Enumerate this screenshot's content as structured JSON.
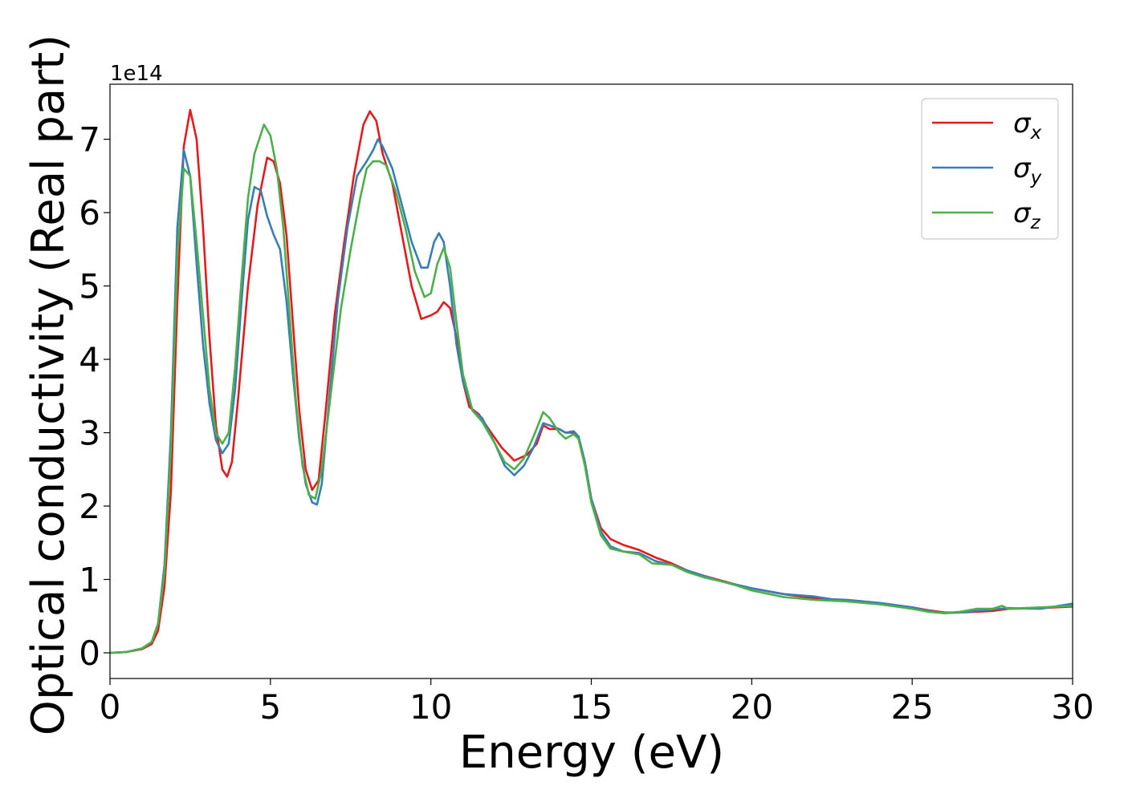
{
  "chart_data": {
    "type": "line",
    "xlabel": "Energy (eV)",
    "ylabel": "Optical conductivity (Real part)",
    "y_offset_text": "1e14",
    "y_scale_multiplier": 100000000000000.0,
    "xlim": [
      0,
      30
    ],
    "ylim": [
      -0.35,
      7.75
    ],
    "x_ticks": [
      0,
      5,
      10,
      15,
      20,
      25,
      30
    ],
    "y_ticks": [
      0,
      1,
      2,
      3,
      4,
      5,
      6,
      7
    ],
    "grid": false,
    "legend_position": "top-right",
    "series": [
      {
        "name": "σ",
        "subscript": "x",
        "color": "#e41a1c",
        "points": [
          [
            0,
            0
          ],
          [
            0.5,
            0.01
          ],
          [
            1.0,
            0.05
          ],
          [
            1.3,
            0.12
          ],
          [
            1.5,
            0.3
          ],
          [
            1.7,
            0.9
          ],
          [
            1.9,
            2.2
          ],
          [
            2.1,
            4.8
          ],
          [
            2.3,
            6.9
          ],
          [
            2.5,
            7.4
          ],
          [
            2.7,
            7.0
          ],
          [
            2.9,
            5.8
          ],
          [
            3.1,
            4.3
          ],
          [
            3.3,
            3.1
          ],
          [
            3.5,
            2.5
          ],
          [
            3.65,
            2.4
          ],
          [
            3.8,
            2.6
          ],
          [
            4.0,
            3.5
          ],
          [
            4.3,
            5.0
          ],
          [
            4.6,
            6.1
          ],
          [
            4.9,
            6.75
          ],
          [
            5.1,
            6.7
          ],
          [
            5.3,
            6.4
          ],
          [
            5.5,
            5.7
          ],
          [
            5.7,
            4.5
          ],
          [
            5.9,
            3.3
          ],
          [
            6.1,
            2.5
          ],
          [
            6.3,
            2.22
          ],
          [
            6.5,
            2.35
          ],
          [
            6.7,
            3.2
          ],
          [
            7.0,
            4.6
          ],
          [
            7.3,
            5.6
          ],
          [
            7.6,
            6.5
          ],
          [
            7.9,
            7.2
          ],
          [
            8.1,
            7.38
          ],
          [
            8.3,
            7.25
          ],
          [
            8.5,
            6.8
          ],
          [
            8.8,
            6.4
          ],
          [
            9.1,
            5.7
          ],
          [
            9.4,
            5.0
          ],
          [
            9.7,
            4.55
          ],
          [
            10.0,
            4.6
          ],
          [
            10.2,
            4.65
          ],
          [
            10.4,
            4.78
          ],
          [
            10.6,
            4.7
          ],
          [
            10.8,
            4.3
          ],
          [
            11.0,
            3.7
          ],
          [
            11.2,
            3.35
          ],
          [
            11.5,
            3.25
          ],
          [
            11.8,
            3.05
          ],
          [
            12.2,
            2.8
          ],
          [
            12.6,
            2.62
          ],
          [
            13.0,
            2.7
          ],
          [
            13.3,
            2.85
          ],
          [
            13.5,
            3.1
          ],
          [
            13.7,
            3.05
          ],
          [
            14.0,
            3.05
          ],
          [
            14.2,
            3.0
          ],
          [
            14.45,
            3.0
          ],
          [
            14.6,
            2.95
          ],
          [
            14.8,
            2.6
          ],
          [
            15.0,
            2.1
          ],
          [
            15.3,
            1.7
          ],
          [
            15.6,
            1.55
          ],
          [
            16.0,
            1.47
          ],
          [
            16.5,
            1.4
          ],
          [
            17.0,
            1.3
          ],
          [
            17.5,
            1.22
          ],
          [
            18.0,
            1.12
          ],
          [
            18.5,
            1.05
          ],
          [
            19.0,
            0.99
          ],
          [
            19.5,
            0.93
          ],
          [
            20.0,
            0.88
          ],
          [
            21.0,
            0.8
          ],
          [
            22.0,
            0.74
          ],
          [
            23.0,
            0.7
          ],
          [
            24.0,
            0.67
          ],
          [
            25.0,
            0.62
          ],
          [
            25.5,
            0.58
          ],
          [
            26.0,
            0.55
          ],
          [
            26.5,
            0.55
          ],
          [
            27.0,
            0.56
          ],
          [
            27.5,
            0.57
          ],
          [
            28.0,
            0.6
          ],
          [
            29.0,
            0.61
          ],
          [
            30.0,
            0.63
          ]
        ]
      },
      {
        "name": "σ",
        "subscript": "y",
        "color": "#377eb8",
        "points": [
          [
            0,
            0
          ],
          [
            0.5,
            0.01
          ],
          [
            1.0,
            0.06
          ],
          [
            1.3,
            0.15
          ],
          [
            1.5,
            0.4
          ],
          [
            1.7,
            1.2
          ],
          [
            1.9,
            3.0
          ],
          [
            2.1,
            5.8
          ],
          [
            2.3,
            6.85
          ],
          [
            2.5,
            6.5
          ],
          [
            2.7,
            5.3
          ],
          [
            2.9,
            4.2
          ],
          [
            3.1,
            3.4
          ],
          [
            3.3,
            2.9
          ],
          [
            3.5,
            2.72
          ],
          [
            3.7,
            2.85
          ],
          [
            3.9,
            3.6
          ],
          [
            4.1,
            4.8
          ],
          [
            4.3,
            5.9
          ],
          [
            4.5,
            6.35
          ],
          [
            4.7,
            6.3
          ],
          [
            4.9,
            5.95
          ],
          [
            5.1,
            5.7
          ],
          [
            5.3,
            5.5
          ],
          [
            5.5,
            4.8
          ],
          [
            5.7,
            3.8
          ],
          [
            5.9,
            2.9
          ],
          [
            6.1,
            2.3
          ],
          [
            6.3,
            2.05
          ],
          [
            6.45,
            2.02
          ],
          [
            6.6,
            2.3
          ],
          [
            6.8,
            3.3
          ],
          [
            7.1,
            4.8
          ],
          [
            7.4,
            5.8
          ],
          [
            7.7,
            6.5
          ],
          [
            8.0,
            6.7
          ],
          [
            8.2,
            6.85
          ],
          [
            8.35,
            7.0
          ],
          [
            8.5,
            6.9
          ],
          [
            8.8,
            6.6
          ],
          [
            9.1,
            6.1
          ],
          [
            9.4,
            5.6
          ],
          [
            9.7,
            5.25
          ],
          [
            9.9,
            5.25
          ],
          [
            10.1,
            5.6
          ],
          [
            10.25,
            5.72
          ],
          [
            10.4,
            5.6
          ],
          [
            10.6,
            5.0
          ],
          [
            10.8,
            4.2
          ],
          [
            11.0,
            3.7
          ],
          [
            11.3,
            3.3
          ],
          [
            11.6,
            3.2
          ],
          [
            12.0,
            2.85
          ],
          [
            12.3,
            2.55
          ],
          [
            12.6,
            2.42
          ],
          [
            12.9,
            2.55
          ],
          [
            13.2,
            2.8
          ],
          [
            13.5,
            3.13
          ],
          [
            13.7,
            3.1
          ],
          [
            14.0,
            3.05
          ],
          [
            14.2,
            3.0
          ],
          [
            14.45,
            3.02
          ],
          [
            14.6,
            2.95
          ],
          [
            14.8,
            2.6
          ],
          [
            15.0,
            2.1
          ],
          [
            15.3,
            1.65
          ],
          [
            15.6,
            1.45
          ],
          [
            16.0,
            1.38
          ],
          [
            16.5,
            1.36
          ],
          [
            17.0,
            1.25
          ],
          [
            17.5,
            1.2
          ],
          [
            18.0,
            1.12
          ],
          [
            18.5,
            1.05
          ],
          [
            19.0,
            0.98
          ],
          [
            19.5,
            0.93
          ],
          [
            20.0,
            0.88
          ],
          [
            21.0,
            0.8
          ],
          [
            21.9,
            0.77
          ],
          [
            22.5,
            0.73
          ],
          [
            23.0,
            0.72
          ],
          [
            24.0,
            0.68
          ],
          [
            25.0,
            0.62
          ],
          [
            25.5,
            0.57
          ],
          [
            26.0,
            0.54
          ],
          [
            26.5,
            0.55
          ],
          [
            27.0,
            0.57
          ],
          [
            27.5,
            0.59
          ],
          [
            28.0,
            0.61
          ],
          [
            29.0,
            0.6
          ],
          [
            30.0,
            0.67
          ]
        ]
      },
      {
        "name": "σ",
        "subscript": "z",
        "color": "#4daf4a",
        "points": [
          [
            0,
            0
          ],
          [
            0.5,
            0.01
          ],
          [
            1.0,
            0.06
          ],
          [
            1.3,
            0.15
          ],
          [
            1.5,
            0.4
          ],
          [
            1.7,
            1.1
          ],
          [
            1.9,
            2.8
          ],
          [
            2.1,
            5.4
          ],
          [
            2.3,
            6.6
          ],
          [
            2.5,
            6.5
          ],
          [
            2.7,
            5.6
          ],
          [
            2.9,
            4.6
          ],
          [
            3.1,
            3.6
          ],
          [
            3.3,
            3.0
          ],
          [
            3.5,
            2.85
          ],
          [
            3.7,
            3.0
          ],
          [
            3.9,
            3.9
          ],
          [
            4.1,
            5.1
          ],
          [
            4.3,
            6.2
          ],
          [
            4.5,
            6.8
          ],
          [
            4.8,
            7.2
          ],
          [
            5.0,
            7.05
          ],
          [
            5.2,
            6.6
          ],
          [
            5.4,
            5.8
          ],
          [
            5.6,
            4.6
          ],
          [
            5.8,
            3.4
          ],
          [
            6.0,
            2.55
          ],
          [
            6.2,
            2.15
          ],
          [
            6.4,
            2.1
          ],
          [
            6.6,
            2.5
          ],
          [
            6.9,
            3.6
          ],
          [
            7.2,
            4.7
          ],
          [
            7.5,
            5.5
          ],
          [
            7.8,
            6.2
          ],
          [
            8.0,
            6.6
          ],
          [
            8.2,
            6.7
          ],
          [
            8.4,
            6.7
          ],
          [
            8.6,
            6.65
          ],
          [
            8.9,
            6.3
          ],
          [
            9.2,
            5.8
          ],
          [
            9.5,
            5.2
          ],
          [
            9.8,
            4.85
          ],
          [
            10.0,
            4.9
          ],
          [
            10.2,
            5.3
          ],
          [
            10.4,
            5.52
          ],
          [
            10.6,
            5.25
          ],
          [
            10.8,
            4.5
          ],
          [
            11.0,
            3.8
          ],
          [
            11.3,
            3.3
          ],
          [
            11.6,
            3.15
          ],
          [
            12.0,
            2.85
          ],
          [
            12.3,
            2.6
          ],
          [
            12.6,
            2.5
          ],
          [
            12.9,
            2.65
          ],
          [
            13.2,
            2.95
          ],
          [
            13.5,
            3.28
          ],
          [
            13.7,
            3.2
          ],
          [
            14.0,
            3.0
          ],
          [
            14.2,
            2.92
          ],
          [
            14.45,
            2.98
          ],
          [
            14.6,
            2.92
          ],
          [
            14.8,
            2.55
          ],
          [
            15.0,
            2.05
          ],
          [
            15.3,
            1.6
          ],
          [
            15.6,
            1.42
          ],
          [
            16.0,
            1.38
          ],
          [
            16.5,
            1.34
          ],
          [
            16.9,
            1.22
          ],
          [
            17.5,
            1.2
          ],
          [
            18.0,
            1.1
          ],
          [
            18.5,
            1.03
          ],
          [
            19.0,
            0.98
          ],
          [
            19.5,
            0.92
          ],
          [
            20.0,
            0.85
          ],
          [
            21.0,
            0.76
          ],
          [
            22.0,
            0.72
          ],
          [
            23.0,
            0.7
          ],
          [
            23.5,
            0.68
          ],
          [
            24.0,
            0.66
          ],
          [
            25.0,
            0.6
          ],
          [
            25.5,
            0.56
          ],
          [
            26.0,
            0.54
          ],
          [
            26.5,
            0.56
          ],
          [
            27.0,
            0.6
          ],
          [
            27.5,
            0.6
          ],
          [
            27.8,
            0.64
          ],
          [
            28.0,
            0.6
          ],
          [
            29.0,
            0.62
          ],
          [
            30.0,
            0.64
          ]
        ]
      }
    ]
  }
}
